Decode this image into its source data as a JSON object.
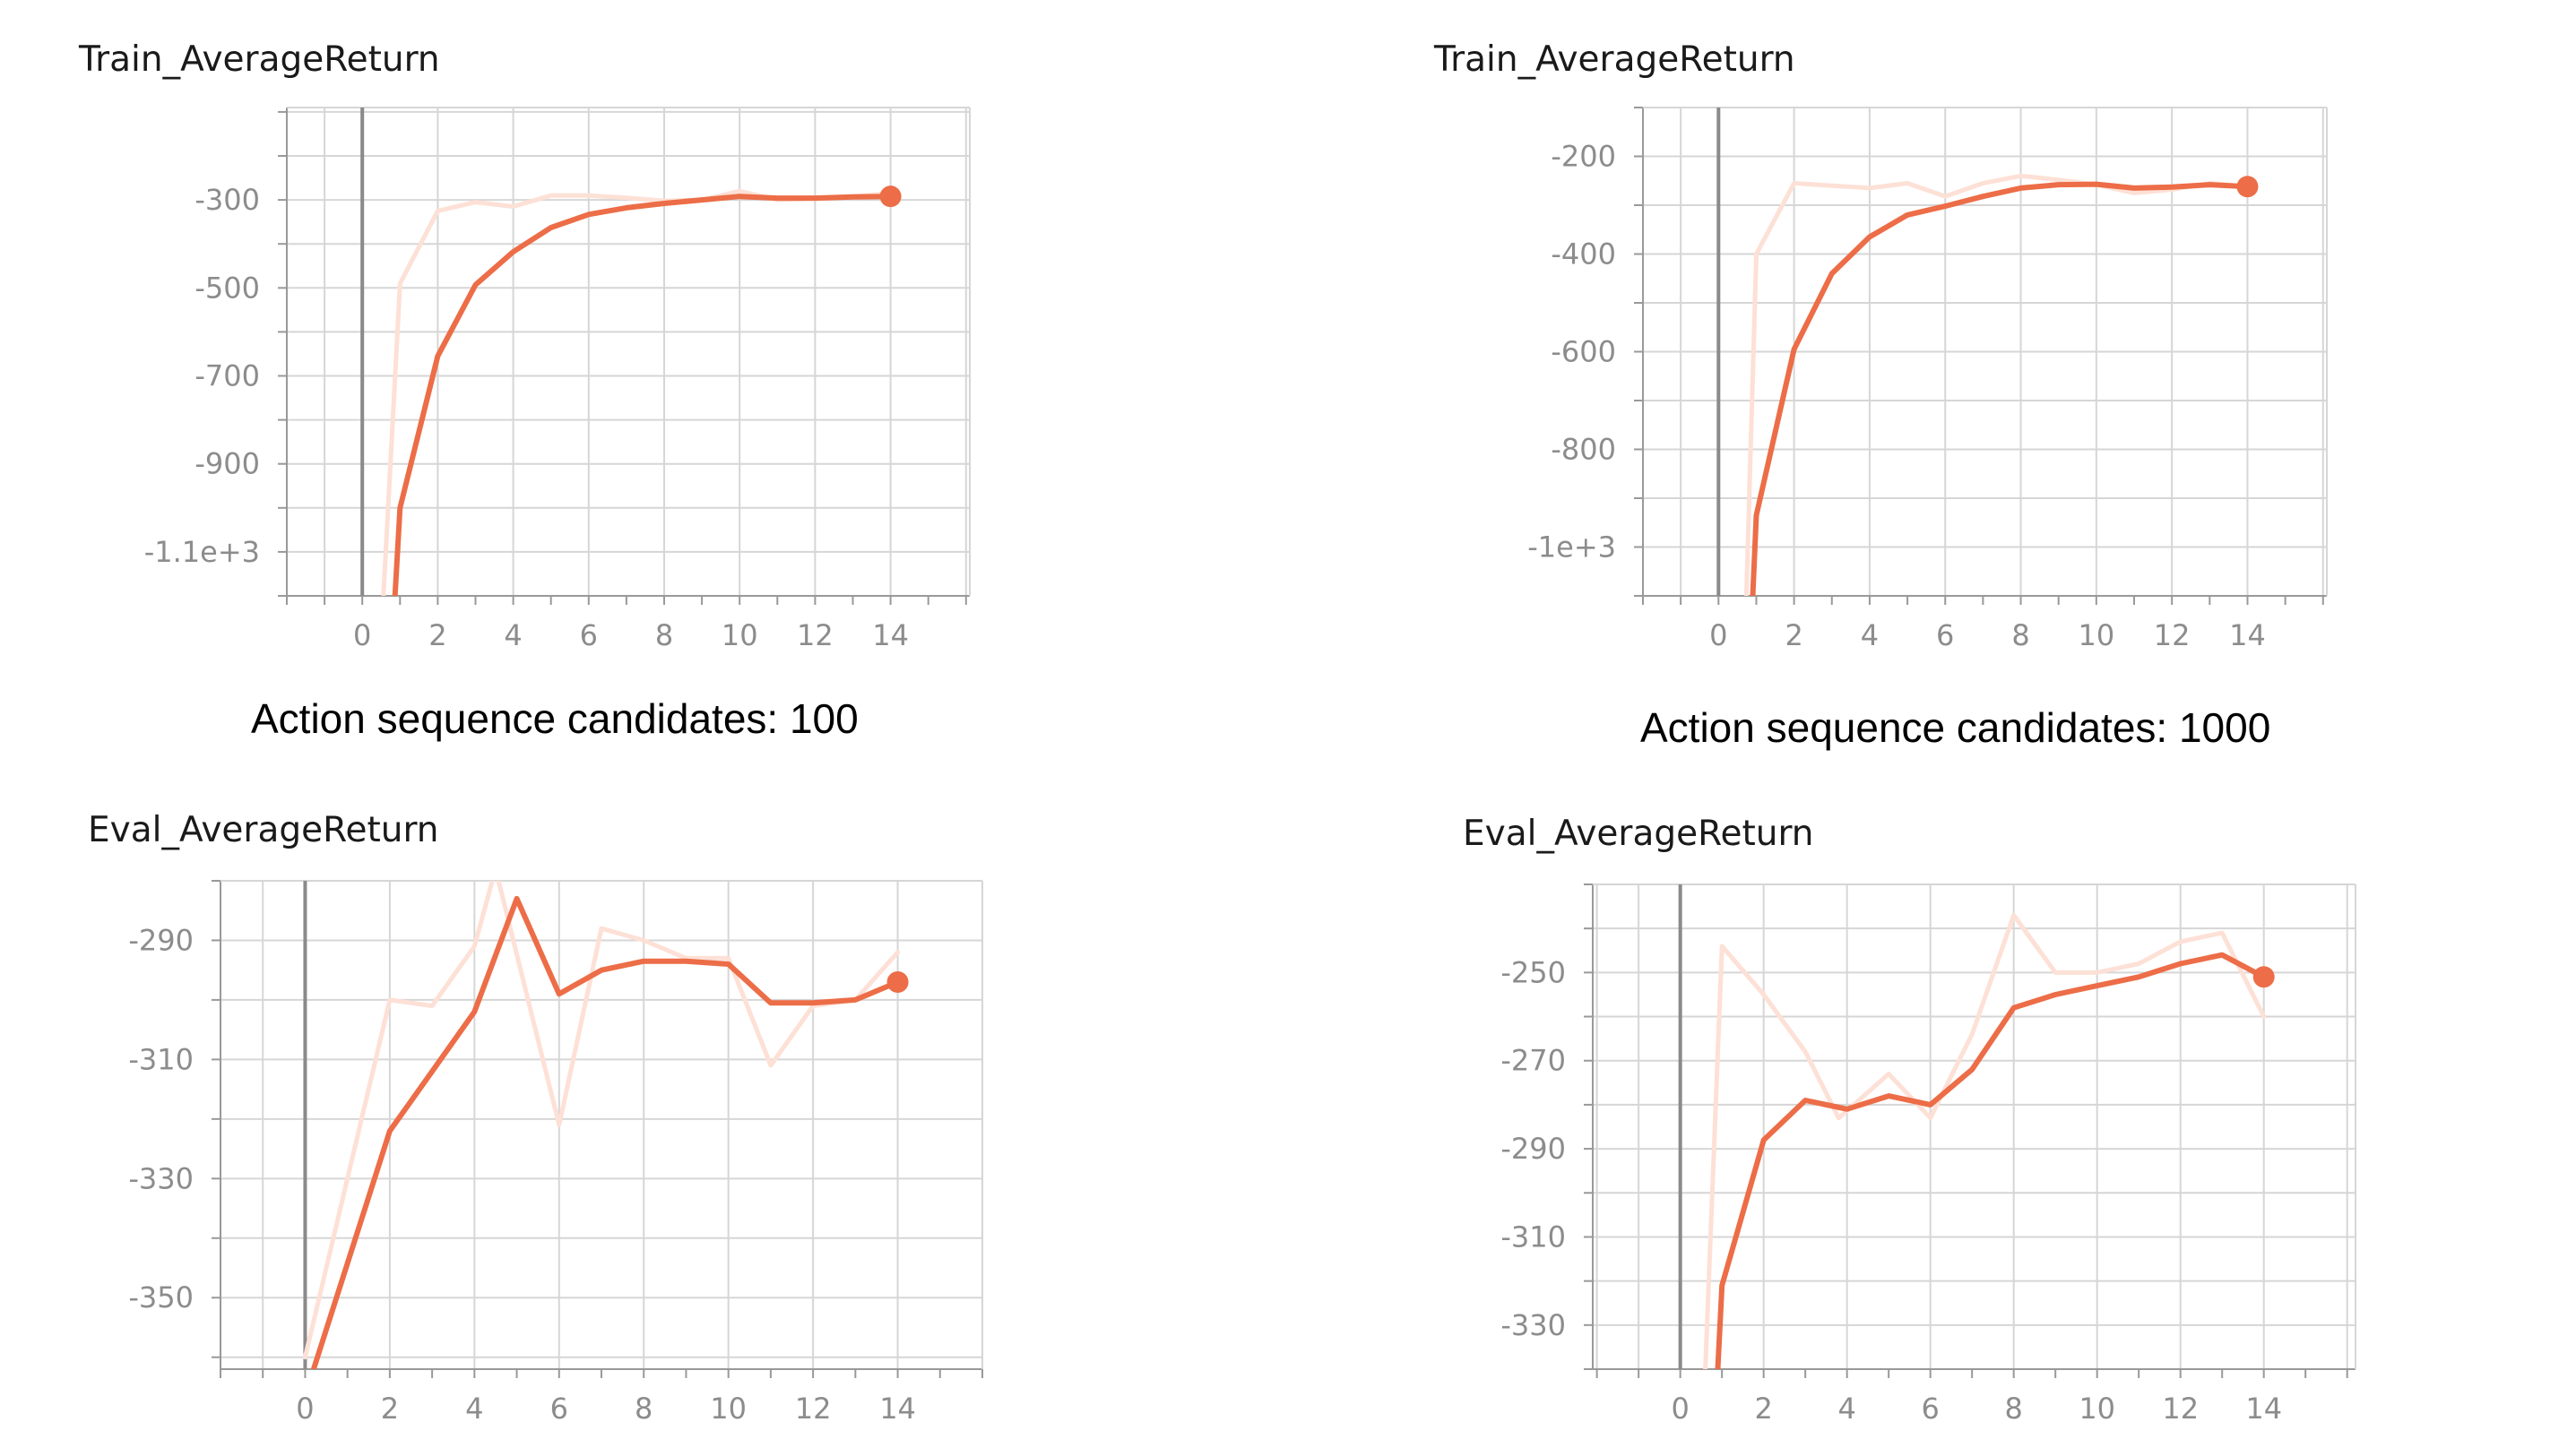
{
  "captions": {
    "left": "Action sequence candidates: 100",
    "right": "Action sequence candidates: 1000"
  },
  "colors": {
    "smoothed": "#ec6d47",
    "raw": "#fde0d6",
    "grid": "#d6d6d6",
    "axis": "#999999",
    "tick_text": "#8c8c8c"
  },
  "chart_data": [
    {
      "id": "train100",
      "type": "line",
      "title": "Train_AverageReturn",
      "xlim": [
        -2,
        16.1
      ],
      "ylim": [
        -1200,
        -90
      ],
      "x_ticks": [
        0,
        2,
        4,
        6,
        8,
        10,
        12,
        14
      ],
      "x_tick_labels": [
        "0",
        "2",
        "4",
        "6",
        "8",
        "10",
        "12",
        "14"
      ],
      "y_ticks": [
        -300,
        -500,
        -700,
        -900,
        -1100
      ],
      "y_tick_labels": [
        "-300",
        "-500",
        "-700",
        "-900",
        "-1.1e+3"
      ],
      "grid": true,
      "series": [
        {
          "role": "raw",
          "x": [
            0.5,
            1,
            2,
            3,
            4,
            5,
            6,
            7,
            8,
            9,
            10,
            11,
            12,
            13,
            14
          ],
          "y": [
            -1300,
            -490,
            -325,
            -305,
            -315,
            -290,
            -290,
            -295,
            -302,
            -300,
            -280,
            -300,
            -297,
            -292,
            -285
          ]
        },
        {
          "role": "smoothed",
          "x": [
            0.8,
            1,
            2,
            3,
            4,
            5,
            6,
            7,
            8,
            9,
            10,
            11,
            12,
            13,
            14
          ],
          "y": [
            -1300,
            -1000,
            -655,
            -493,
            -418,
            -363,
            -333,
            -318,
            -308,
            -300,
            -292,
            -296,
            -296,
            -293,
            -292
          ]
        }
      ]
    },
    {
      "id": "train1000",
      "type": "line",
      "title": "Train_AverageReturn",
      "xlim": [
        -2,
        16.1
      ],
      "ylim": [
        -1100,
        -100
      ],
      "x_ticks": [
        0,
        2,
        4,
        6,
        8,
        10,
        12,
        14
      ],
      "x_tick_labels": [
        "0",
        "2",
        "4",
        "6",
        "8",
        "10",
        "12",
        "14"
      ],
      "y_ticks": [
        -200,
        -400,
        -600,
        -800,
        -1000
      ],
      "y_tick_labels": [
        "-200",
        "-400",
        "-600",
        "-800",
        "-1e+3"
      ],
      "grid": true,
      "series": [
        {
          "role": "raw",
          "x": [
            0.7,
            1,
            2,
            3,
            4,
            5,
            6,
            7,
            8,
            9,
            10,
            11,
            12,
            13,
            14
          ],
          "y": [
            -1200,
            -400,
            -255,
            -260,
            -265,
            -255,
            -282,
            -255,
            -240,
            -248,
            -258,
            -275,
            -268,
            -255,
            -262
          ]
        },
        {
          "role": "smoothed",
          "x": [
            0.85,
            1,
            2,
            3,
            4,
            5,
            6,
            7,
            8,
            9,
            10,
            11,
            12,
            13,
            14
          ],
          "y": [
            -1200,
            -935,
            -595,
            -440,
            -365,
            -320,
            -302,
            -282,
            -265,
            -258,
            -257,
            -265,
            -263,
            -258,
            -262
          ]
        }
      ]
    },
    {
      "id": "eval100",
      "type": "line",
      "title": "Eval_AverageReturn",
      "xlim": [
        -2,
        16
      ],
      "ylim": [
        -362,
        -280
      ],
      "x_ticks": [
        0,
        2,
        4,
        6,
        8,
        10,
        12,
        14
      ],
      "x_tick_labels": [
        "0",
        "2",
        "4",
        "6",
        "8",
        "10",
        "12",
        "14"
      ],
      "y_ticks": [
        -290,
        -310,
        -330,
        -350
      ],
      "y_tick_labels": [
        "-290",
        "-310",
        "-330",
        "-350"
      ],
      "grid": true,
      "series": [
        {
          "role": "raw",
          "x": [
            0,
            2,
            3,
            4,
            4.5,
            6,
            7,
            8,
            9,
            10,
            11,
            12,
            13,
            14
          ],
          "y": [
            -360,
            -300,
            -301,
            -291,
            -278,
            -321,
            -288,
            -290,
            -293,
            -293,
            -311,
            -301,
            -300,
            -292
          ]
        },
        {
          "role": "smoothed",
          "x": [
            0.2,
            2,
            3,
            4,
            5,
            6,
            7,
            8,
            9,
            10,
            11,
            12,
            13,
            14
          ],
          "y": [
            -362,
            -322,
            -312,
            -302,
            -283,
            -299,
            -295,
            -293.5,
            -293.5,
            -294,
            -300.5,
            -300.5,
            -300,
            -297
          ]
        }
      ]
    },
    {
      "id": "eval1000",
      "type": "line",
      "title": "Eval_AverageReturn",
      "xlim": [
        -2.1,
        16.2
      ],
      "ylim": [
        -340,
        -230
      ],
      "x_ticks": [
        0,
        2,
        4,
        6,
        8,
        10,
        12,
        14
      ],
      "x_tick_labels": [
        "0",
        "2",
        "4",
        "6",
        "8",
        "10",
        "12",
        "14"
      ],
      "y_ticks": [
        -250,
        -270,
        -290,
        -310,
        -330
      ],
      "y_tick_labels": [
        "-250",
        "-270",
        "-290",
        "-310",
        "-330"
      ],
      "grid": true,
      "series": [
        {
          "role": "raw",
          "x": [
            0.6,
            1,
            2,
            3,
            3.8,
            5,
            6,
            7,
            8,
            9,
            10,
            11,
            12,
            13,
            14
          ],
          "y": [
            -340,
            -244,
            -255,
            -268,
            -283,
            -273,
            -283,
            -264,
            -237,
            -250,
            -250,
            -248,
            -243,
            -241,
            -260
          ]
        },
        {
          "role": "smoothed",
          "x": [
            0.9,
            1,
            2,
            3,
            4,
            5,
            6,
            7,
            8,
            9,
            10,
            11,
            12,
            13,
            14
          ],
          "y": [
            -340,
            -321,
            -288,
            -279,
            -281,
            -278,
            -280,
            -272,
            -258,
            -255,
            -253,
            -251,
            -248,
            -246,
            -251
          ]
        }
      ]
    }
  ]
}
